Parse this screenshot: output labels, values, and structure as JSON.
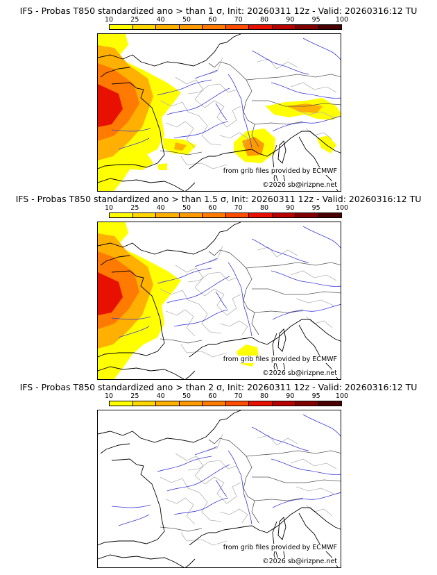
{
  "panels": [
    {
      "title": "IFS - Probas T850  standardized ano > than 1 σ, Init: 20260311 12z - Valid: 20260316:12 TU",
      "threshold": "1 σ",
      "credit": "from grib files provided by ECMWF",
      "copyright": "©2026 sb@irizpne.net",
      "regions": [
        "atlantic-west-france",
        "gulf-of-lion",
        "northern-italy",
        "southern-spain",
        "north-spain-coast"
      ]
    },
    {
      "title": "IFS - Probas T850  standardized ano > than 1.5 σ, Init: 20260311 12z - Valid: 20260316:12 TU",
      "threshold": "1.5 σ",
      "credit": "from grib files provided by ECMWF",
      "copyright": "©2026 sb@irizpne.net",
      "regions": [
        "atlantic-west-france",
        "gulf-of-lion-small"
      ]
    },
    {
      "title": "IFS - Probas T850  standardized ano > than 2 σ, Init: 20260311 12z - Valid: 20260316:12 TU",
      "threshold": "2 σ",
      "credit": "from grib files provided by ECMWF",
      "copyright": "©2026 sb@irizpne.net",
      "regions": []
    }
  ],
  "scale": {
    "ticks": [
      "10",
      "25",
      "40",
      "50",
      "60",
      "70",
      "80",
      "90",
      "95",
      "100"
    ],
    "colors": [
      "#ffff00",
      "#ffd700",
      "#ffb000",
      "#ff9a00",
      "#ff7a00",
      "#ff4d00",
      "#e81000",
      "#b80000",
      "#800000",
      "#4a0000"
    ]
  }
}
